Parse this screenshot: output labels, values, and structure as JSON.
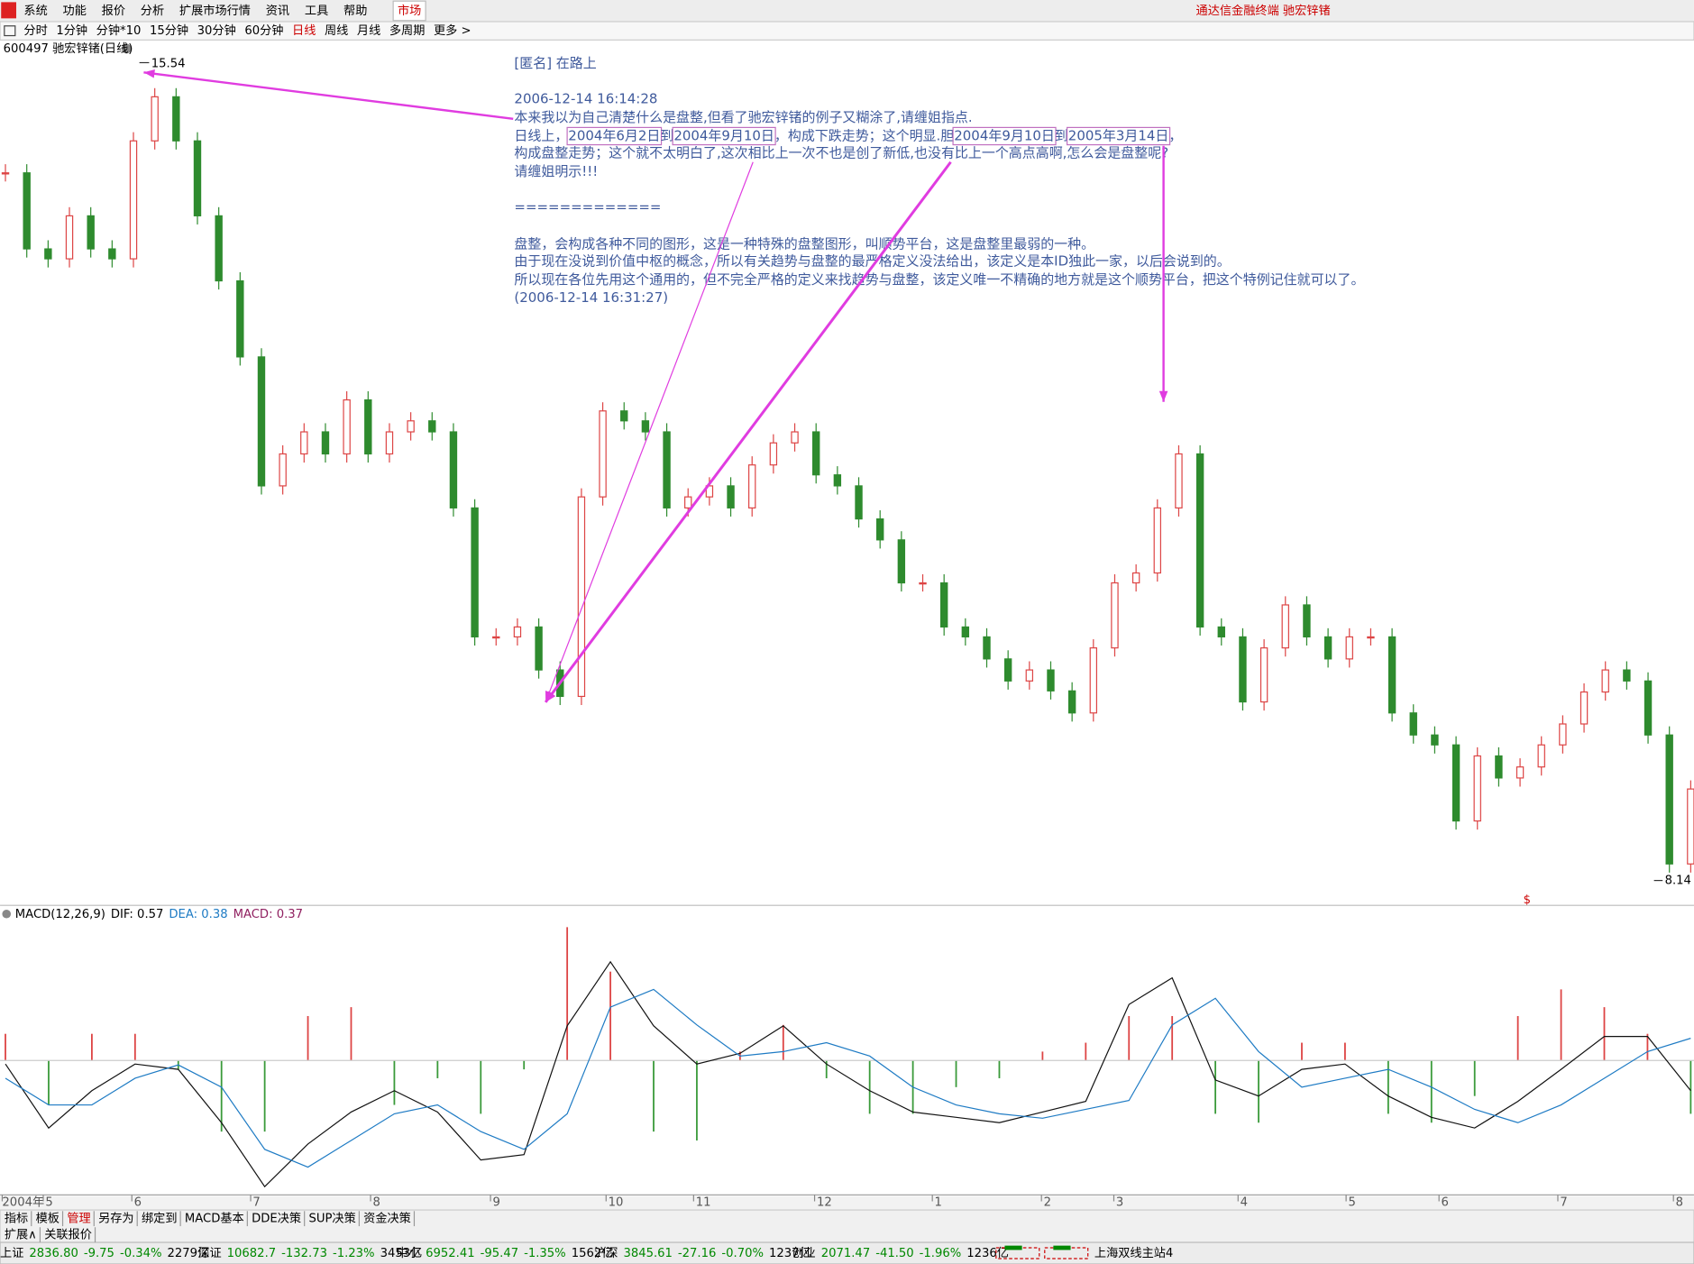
{
  "menu": {
    "items": [
      "系统",
      "功能",
      "报价",
      "分析",
      "扩展市场行情",
      "资讯",
      "工具",
      "帮助",
      "市场"
    ],
    "app_title": "通达信金融终端 驰宏锌锗"
  },
  "periods": {
    "items": [
      "分时",
      "1分钟",
      "分钟*10",
      "15分钟",
      "30分钟",
      "60分钟",
      "日线",
      "周线",
      "月线",
      "多周期",
      "更多 >"
    ],
    "active": "日线"
  },
  "chart": {
    "title": "600497 驰宏锌锗(日线)",
    "high_label": "15.54",
    "low_label": "8.14",
    "high": 15.54,
    "low": 8.14,
    "closes": [
      14.56,
      13.87,
      13.78,
      14.17,
      13.87,
      13.78,
      14.85,
      15.25,
      14.85,
      14.17,
      13.58,
      12.89,
      11.72,
      12.01,
      12.21,
      12.01,
      12.5,
      12.01,
      12.21,
      12.31,
      12.21,
      11.52,
      10.35,
      10.35,
      10.44,
      10.05,
      9.81,
      11.62,
      12.4,
      12.31,
      12.21,
      11.52,
      11.62,
      11.72,
      11.52,
      11.91,
      12.11,
      12.21,
      11.82,
      11.72,
      11.42,
      11.23,
      10.84,
      10.84,
      10.44,
      10.35,
      10.15,
      9.95,
      10.05,
      9.86,
      9.66,
      10.25,
      10.84,
      10.93,
      11.52,
      12.01,
      10.44,
      10.35,
      9.76,
      10.25,
      10.64,
      10.35,
      10.15,
      10.35,
      10.35,
      9.66,
      9.46,
      9.37,
      8.68,
      9.27,
      9.07,
      9.17,
      9.37,
      9.56,
      9.85,
      10.05,
      9.95,
      9.46,
      8.29,
      8.97
    ],
    "marker": "$"
  },
  "annotation": {
    "lines": [
      [
        "[匿名] 在路上"
      ],
      [
        "2006-12-14 16:14:28"
      ],
      [
        "本来我以为自己清楚什么是盘整,但看了驰宏锌锗的例子又糊涂了,请缠姐指点."
      ],
      [
        "日线上，",
        "2004年6月2日",
        "到",
        "2004年9月10日",
        "，构成下跌走势；这个明显.胆",
        "2004年9月10日",
        "到",
        "2005年3月14日",
        "，"
      ],
      [
        "构成盘整走势；这个就不太明白了,这次相比上一次不也是创了新低,也没有比上一个高点高啊,怎么会是盘整呢?"
      ],
      [
        "请缠姐明示!!!"
      ],
      [
        "============="
      ],
      [
        "盘整，会构成各种不同的图形，这是一种特殊的盘整图形，叫顺势平台，这是盘整里最弱的一种。"
      ],
      [
        "由于现在没说到价值中枢的概念，所以有关趋势与盘整的最严格定义没法给出，该定义是本ID独此一家，以后会说到的。"
      ],
      [
        "所以现在各位先用这个通用的，但不完全严格的定义来找趋势与盘整，该定义唯一不精确的地方就是这个顺势平台，把这个特例记住就可以了。"
      ],
      [
        "(2006-12-14 16:31:27)"
      ]
    ]
  },
  "macd": {
    "title": "MACD(12,26,9)",
    "dif_label": "DIF: 0.57",
    "dea_label": "DEA: 0.38",
    "macd_label": "MACD: 0.37",
    "ylim": [
      -1.5,
      1.6
    ],
    "dif": [
      -0.04,
      -0.76,
      -0.34,
      -0.04,
      -0.1,
      -0.7,
      -1.42,
      -0.94,
      -0.58,
      -0.34,
      -0.58,
      -1.12,
      -1.06,
      0.39,
      1.11,
      0.39,
      -0.04,
      0.08,
      0.39,
      -0.04,
      -0.34,
      -0.58,
      -0.64,
      -0.7,
      -0.58,
      -0.46,
      0.63,
      0.93,
      -0.22,
      -0.4,
      -0.1,
      -0.04,
      -0.4,
      -0.64,
      -0.76,
      -0.46,
      -0.1,
      0.27,
      0.27,
      -0.34
    ],
    "dea": [
      -0.2,
      -0.5,
      -0.5,
      -0.2,
      -0.05,
      -0.3,
      -1.0,
      -1.2,
      -0.9,
      -0.6,
      -0.5,
      -0.8,
      -1.0,
      -0.6,
      0.6,
      0.8,
      0.4,
      0.05,
      0.1,
      0.2,
      0.05,
      -0.3,
      -0.5,
      -0.6,
      -0.65,
      -0.55,
      -0.45,
      0.4,
      0.7,
      0.1,
      -0.3,
      -0.2,
      -0.1,
      -0.3,
      -0.55,
      -0.7,
      -0.5,
      -0.2,
      0.1,
      0.25
    ],
    "hist": [
      0.3,
      -0.5,
      0.3,
      0.3,
      -0.1,
      -0.8,
      -0.8,
      0.5,
      0.6,
      -0.5,
      -0.2,
      -0.6,
      -0.1,
      1.5,
      1.0,
      -0.8,
      -0.9,
      0.1,
      0.4,
      -0.2,
      -0.6,
      -0.6,
      -0.3,
      -0.2,
      0.1,
      0.2,
      0.5,
      0.5,
      -0.6,
      -0.7,
      0.2,
      0.2,
      -0.6,
      -0.7,
      -0.4,
      0.5,
      0.8,
      0.6,
      0.3,
      -0.6
    ]
  },
  "time_axis": [
    "2004年",
    "5",
    "6",
    "7",
    "8",
    "9",
    "10",
    "11",
    "12",
    "1",
    "2",
    "3",
    "4",
    "5",
    "6",
    "7",
    "8"
  ],
  "tabs": {
    "row1": [
      "指标",
      "模板",
      "管理",
      "另存为",
      "绑定到",
      "MACD基本",
      "DDE决策",
      "SUP决策",
      "资金决策"
    ],
    "active": "管理",
    "row2": [
      "扩展∧",
      "关联报价"
    ]
  },
  "status": {
    "indices": [
      [
        "上证",
        "2836.80",
        "-9.75",
        "-0.34%",
        "2279亿"
      ],
      [
        "深证",
        "10682.7",
        "-132.73",
        "-1.23%",
        "3453亿"
      ],
      [
        "中小",
        "6952.41",
        "-95.47",
        "-1.35%",
        "1562亿"
      ],
      [
        "沪深",
        "3845.61",
        "-27.16",
        "-0.70%",
        "1237亿"
      ],
      [
        "创业",
        "2071.47",
        "-41.50",
        "-1.96%",
        "1236亿"
      ]
    ],
    "server": "上海双线主站4"
  }
}
